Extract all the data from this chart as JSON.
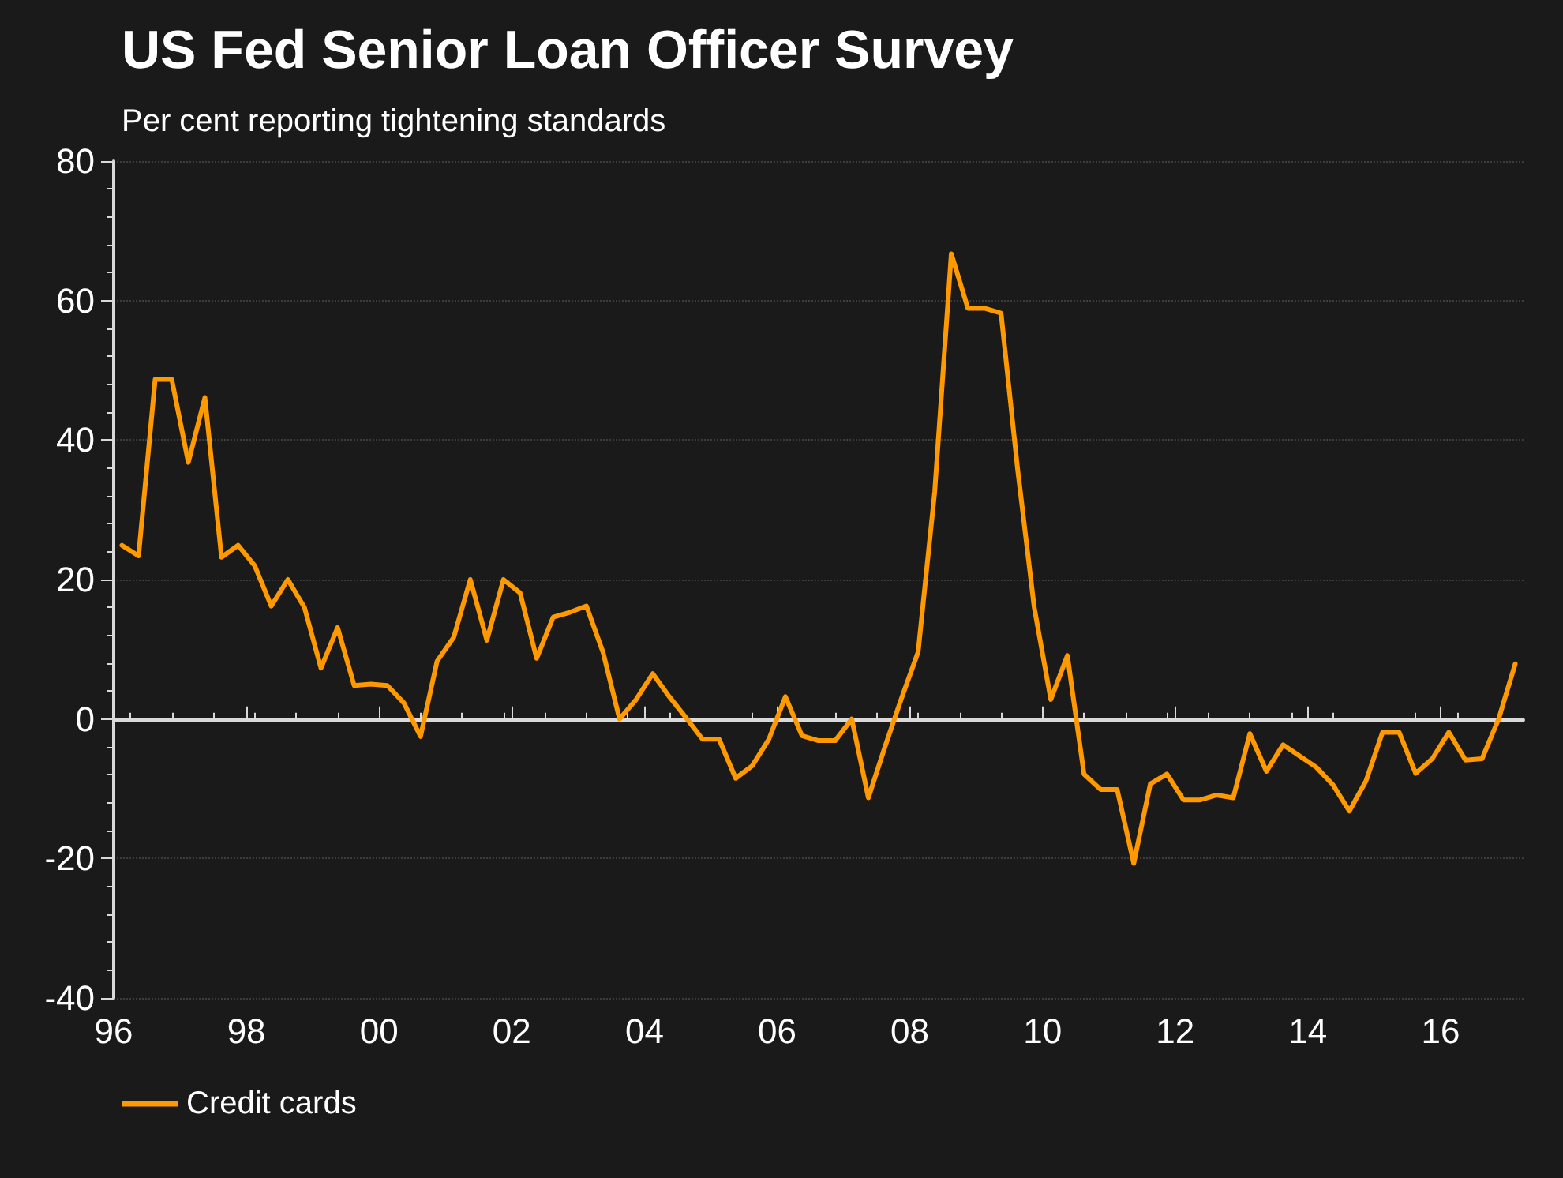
{
  "chart_data": {
    "type": "line",
    "title": "US Fed Senior Loan Officer Survey",
    "subtitle": "Per cent reporting tightening standards",
    "x": [
      1996.125,
      1996.375,
      1996.625,
      1996.875,
      1997.125,
      1997.375,
      1997.625,
      1997.875,
      1998.125,
      1998.375,
      1998.625,
      1998.875,
      1999.125,
      1999.375,
      1999.625,
      1999.875,
      2000.125,
      2000.375,
      2000.625,
      2000.875,
      2001.125,
      2001.375,
      2001.625,
      2001.875,
      2002.125,
      2002.375,
      2002.625,
      2002.875,
      2003.125,
      2003.375,
      2003.625,
      2003.875,
      2004.125,
      2004.375,
      2004.625,
      2004.875,
      2005.125,
      2005.375,
      2005.625,
      2005.875,
      2006.125,
      2006.375,
      2006.625,
      2006.875,
      2007.125,
      2007.375,
      2007.625,
      2007.875,
      2008.125,
      2008.375,
      2008.625,
      2008.875,
      2009.125,
      2009.375,
      2009.625,
      2009.875,
      2010.125,
      2010.375,
      2010.625,
      2010.875,
      2011.125,
      2011.375,
      2011.625,
      2011.875,
      2012.125,
      2012.375,
      2012.625,
      2012.875,
      2013.125,
      2013.375,
      2013.625,
      2013.875,
      2014.125,
      2014.375,
      2014.625,
      2014.875,
      2015.125,
      2015.375,
      2015.625,
      2015.875,
      2016.125,
      2016.375,
      2016.625,
      2016.875,
      2017.125
    ],
    "series": [
      {
        "name": "Credit cards",
        "color": "#ff9900",
        "values": [
          24.9,
          23.4,
          48.7,
          48.7,
          36.8,
          46.1,
          23.2,
          24.9,
          22.0,
          16.2,
          20.0,
          16.0,
          7.3,
          13.1,
          4.8,
          5.0,
          4.8,
          2.3,
          -2.5,
          8.3,
          11.7,
          20.0,
          11.3,
          20.0,
          18.1,
          8.7,
          14.6,
          15.3,
          16.2,
          9.6,
          0,
          2.8,
          6.5,
          3.2,
          0.2,
          -2.9,
          -2.9,
          -8.5,
          -6.7,
          -2.9,
          3.2,
          -2.4,
          -3.1,
          -3.1,
          0,
          -11.3,
          -4,
          3,
          9.6,
          32.6,
          66.7,
          58.9,
          58.9,
          58.2,
          35.8,
          16,
          2.8,
          9.1,
          -7.9,
          -10.1,
          -10.1,
          -20.7,
          -9.3,
          -7.9,
          -11.6,
          -11.6,
          -10.9,
          -11.3,
          -2.1,
          -7.5,
          -3.7,
          -5.3,
          -6.9,
          -9.4,
          -13.2,
          -8.9,
          -1.9,
          -1.9,
          -7.8,
          -5.7,
          -1.9,
          -5.9,
          -5.7,
          0,
          7.9
        ]
      }
    ],
    "xlim": [
      1996,
      2017.25
    ],
    "xticks": [
      {
        "value": 1996,
        "label": "96"
      },
      {
        "value": 1998,
        "label": "98"
      },
      {
        "value": 2000,
        "label": "00"
      },
      {
        "value": 2002,
        "label": "02"
      },
      {
        "value": 2004,
        "label": "04"
      },
      {
        "value": 2006,
        "label": "06"
      },
      {
        "value": 2008,
        "label": "08"
      },
      {
        "value": 2010,
        "label": "10"
      },
      {
        "value": 2012,
        "label": "12"
      },
      {
        "value": 2014,
        "label": "14"
      },
      {
        "value": 2016,
        "label": "16"
      }
    ],
    "ylim": [
      -40,
      80
    ],
    "yticks": [
      -40,
      -20,
      0,
      20,
      40,
      60,
      80
    ],
    "ref_lines": [
      {
        "axis": "y",
        "value": 0,
        "color": "#d9d9d9"
      }
    ],
    "grid": "y",
    "legend": "bottom left",
    "marker": "none",
    "line_style": "solid"
  }
}
